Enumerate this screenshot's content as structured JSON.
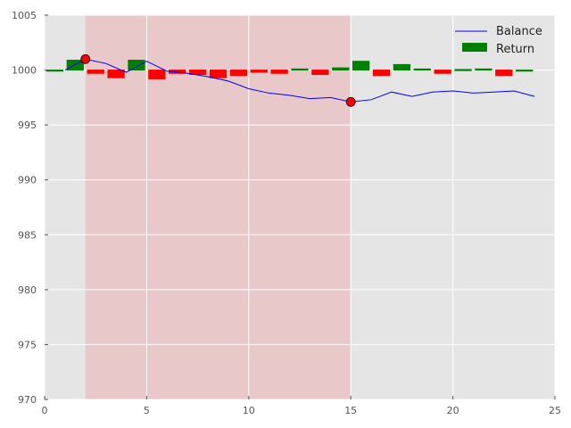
{
  "chart_data": {
    "type": "bar",
    "title": "",
    "xlabel": "",
    "ylabel": "",
    "xlim": [
      0,
      25
    ],
    "ylim": [
      970,
      1005
    ],
    "xticks": [
      0,
      5,
      10,
      15,
      20,
      25
    ],
    "yticks": [
      970,
      975,
      980,
      985,
      990,
      995,
      1000,
      1005
    ],
    "grid": true,
    "legend_position": "top-right",
    "shaded_region": {
      "x_start": 2,
      "x_end": 15,
      "color": "#e8c8c9"
    },
    "background_color": "#e5e5e5",
    "series": [
      {
        "name": "Balance",
        "kind": "line",
        "color": "#0000ff",
        "x": [
          1,
          2,
          3,
          4,
          5,
          6,
          7,
          8,
          9,
          10,
          11,
          12,
          13,
          14,
          15,
          16,
          17,
          18,
          19,
          20,
          21,
          22,
          23,
          24
        ],
        "values": [
          1000.0,
          1001.0,
          1000.6,
          999.8,
          1000.8,
          999.9,
          999.7,
          999.4,
          999.0,
          998.3,
          997.9,
          997.7,
          997.4,
          997.5,
          997.1,
          997.3,
          998.0,
          997.6,
          998.0,
          998.1,
          997.9,
          998.0,
          998.1,
          997.6
        ]
      },
      {
        "name": "Return",
        "kind": "bar",
        "color_positive": "#008000",
        "color_negative": "#ff0000",
        "x": [
          0,
          1,
          2,
          3,
          4,
          5,
          6,
          7,
          8,
          9,
          10,
          11,
          12,
          13,
          14,
          15,
          16,
          17,
          18,
          19,
          20,
          21,
          22,
          23
        ],
        "values": [
          0.0,
          0.9,
          -0.3,
          -0.7,
          0.9,
          -0.8,
          -0.3,
          -0.4,
          -0.7,
          -0.5,
          -0.2,
          -0.3,
          0.1,
          -0.4,
          0.2,
          0.8,
          -0.5,
          0.5,
          0.1,
          -0.3,
          0.05,
          0.1,
          -0.5,
          0.0
        ]
      }
    ],
    "markers": [
      {
        "x": 2,
        "y": 1001.0,
        "color": "#ff0000"
      },
      {
        "x": 15,
        "y": 997.1,
        "color": "#ff0000"
      }
    ]
  }
}
